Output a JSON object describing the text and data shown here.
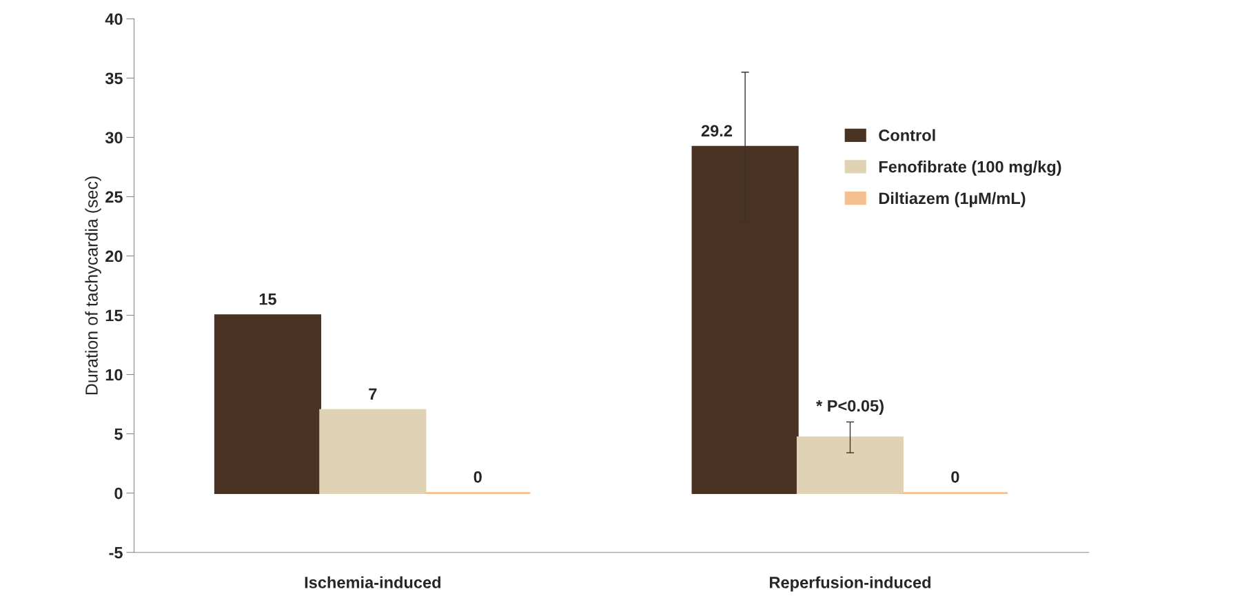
{
  "chart_data": {
    "type": "bar",
    "ylabel": "Duration of tachycardia (sec)",
    "categories": [
      "Ischemia-induced",
      "Reperfusion-induced"
    ],
    "series": [
      {
        "name": "Control",
        "color": "#4a3322",
        "values": [
          15,
          29.2
        ],
        "errors": [
          null,
          6.3
        ],
        "value_labels": [
          "15",
          "29.2"
        ]
      },
      {
        "name": "Fenofibrate (100 mg/kg)",
        "color": "#e0d3b5",
        "values": [
          7,
          4.7
        ],
        "errors": [
          null,
          1.3
        ],
        "value_labels": [
          "7",
          "* P<0.05)"
        ]
      },
      {
        "name": "Diltiazem (1µM/mL)",
        "color": "#f6bf8f",
        "values": [
          0,
          0
        ],
        "value_labels": [
          "0",
          "0"
        ]
      }
    ],
    "ylim": [
      -5,
      40
    ],
    "yticks": [
      -5,
      0,
      5,
      10,
      15,
      20,
      25,
      30,
      35,
      40
    ],
    "grid": false,
    "legend": "right"
  }
}
